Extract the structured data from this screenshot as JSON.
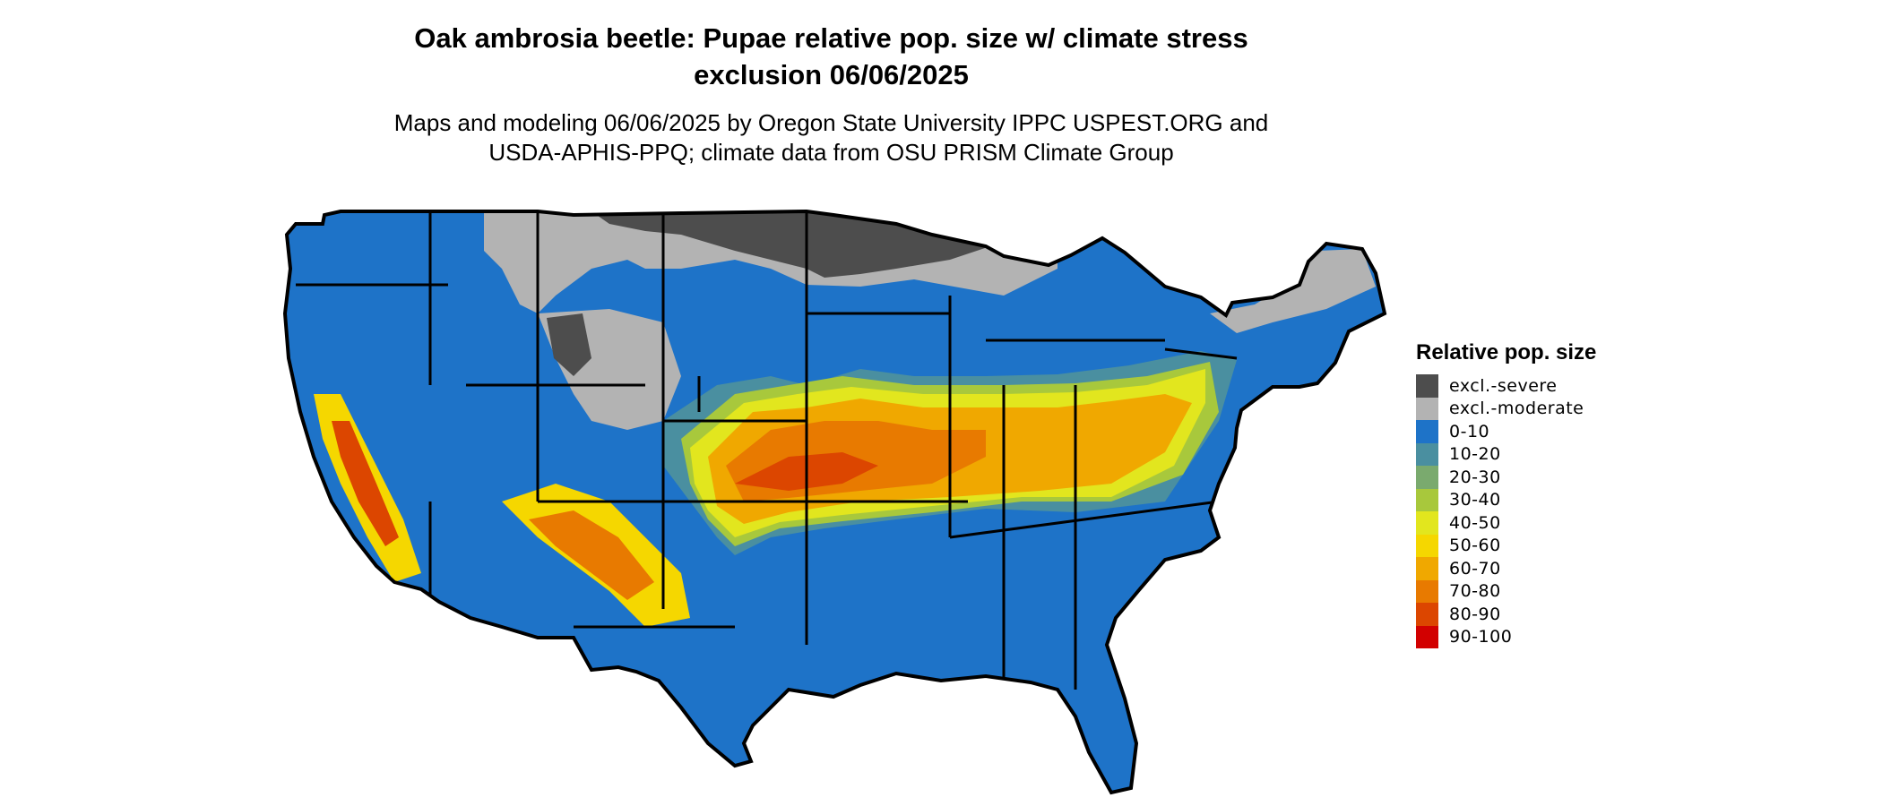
{
  "header": {
    "title_line1": "Oak ambrosia beetle: Pupae relative pop. size w/ climate stress",
    "title_line2": "exclusion 06/06/2025",
    "subtitle_line1": "Maps and modeling 06/06/2025 by Oregon State University IPPC USPEST.ORG and",
    "subtitle_line2": "USDA-APHIS-PPQ; climate data from OSU PRISM Climate Group"
  },
  "legend": {
    "title": "Relative pop. size",
    "items": [
      {
        "label": "excl.-severe",
        "color": "#4d4d4d"
      },
      {
        "label": "excl.-moderate",
        "color": "#b3b3b3"
      },
      {
        "label": "0-10",
        "color": "#1e73c8"
      },
      {
        "label": "10-20",
        "color": "#4a8fa0"
      },
      {
        "label": "20-30",
        "color": "#7aaa6e"
      },
      {
        "label": "30-40",
        "color": "#a8c83c"
      },
      {
        "label": "40-50",
        "color": "#e2e61e"
      },
      {
        "label": "50-60",
        "color": "#f5d700"
      },
      {
        "label": "60-70",
        "color": "#f0a800"
      },
      {
        "label": "70-80",
        "color": "#e87a00"
      },
      {
        "label": "80-90",
        "color": "#dc4600"
      },
      {
        "label": "90-100",
        "color": "#d20000"
      }
    ]
  },
  "map": {
    "region": "Contiguous United States",
    "zones": [
      {
        "name": "northern-plains-severe",
        "class": "excl.-severe"
      },
      {
        "name": "northern-moderate",
        "class": "excl.-moderate"
      },
      {
        "name": "central-corridor",
        "class": "60-70"
      },
      {
        "name": "southeast",
        "class": "0-10"
      },
      {
        "name": "west-coast",
        "class": "0-10"
      }
    ]
  }
}
